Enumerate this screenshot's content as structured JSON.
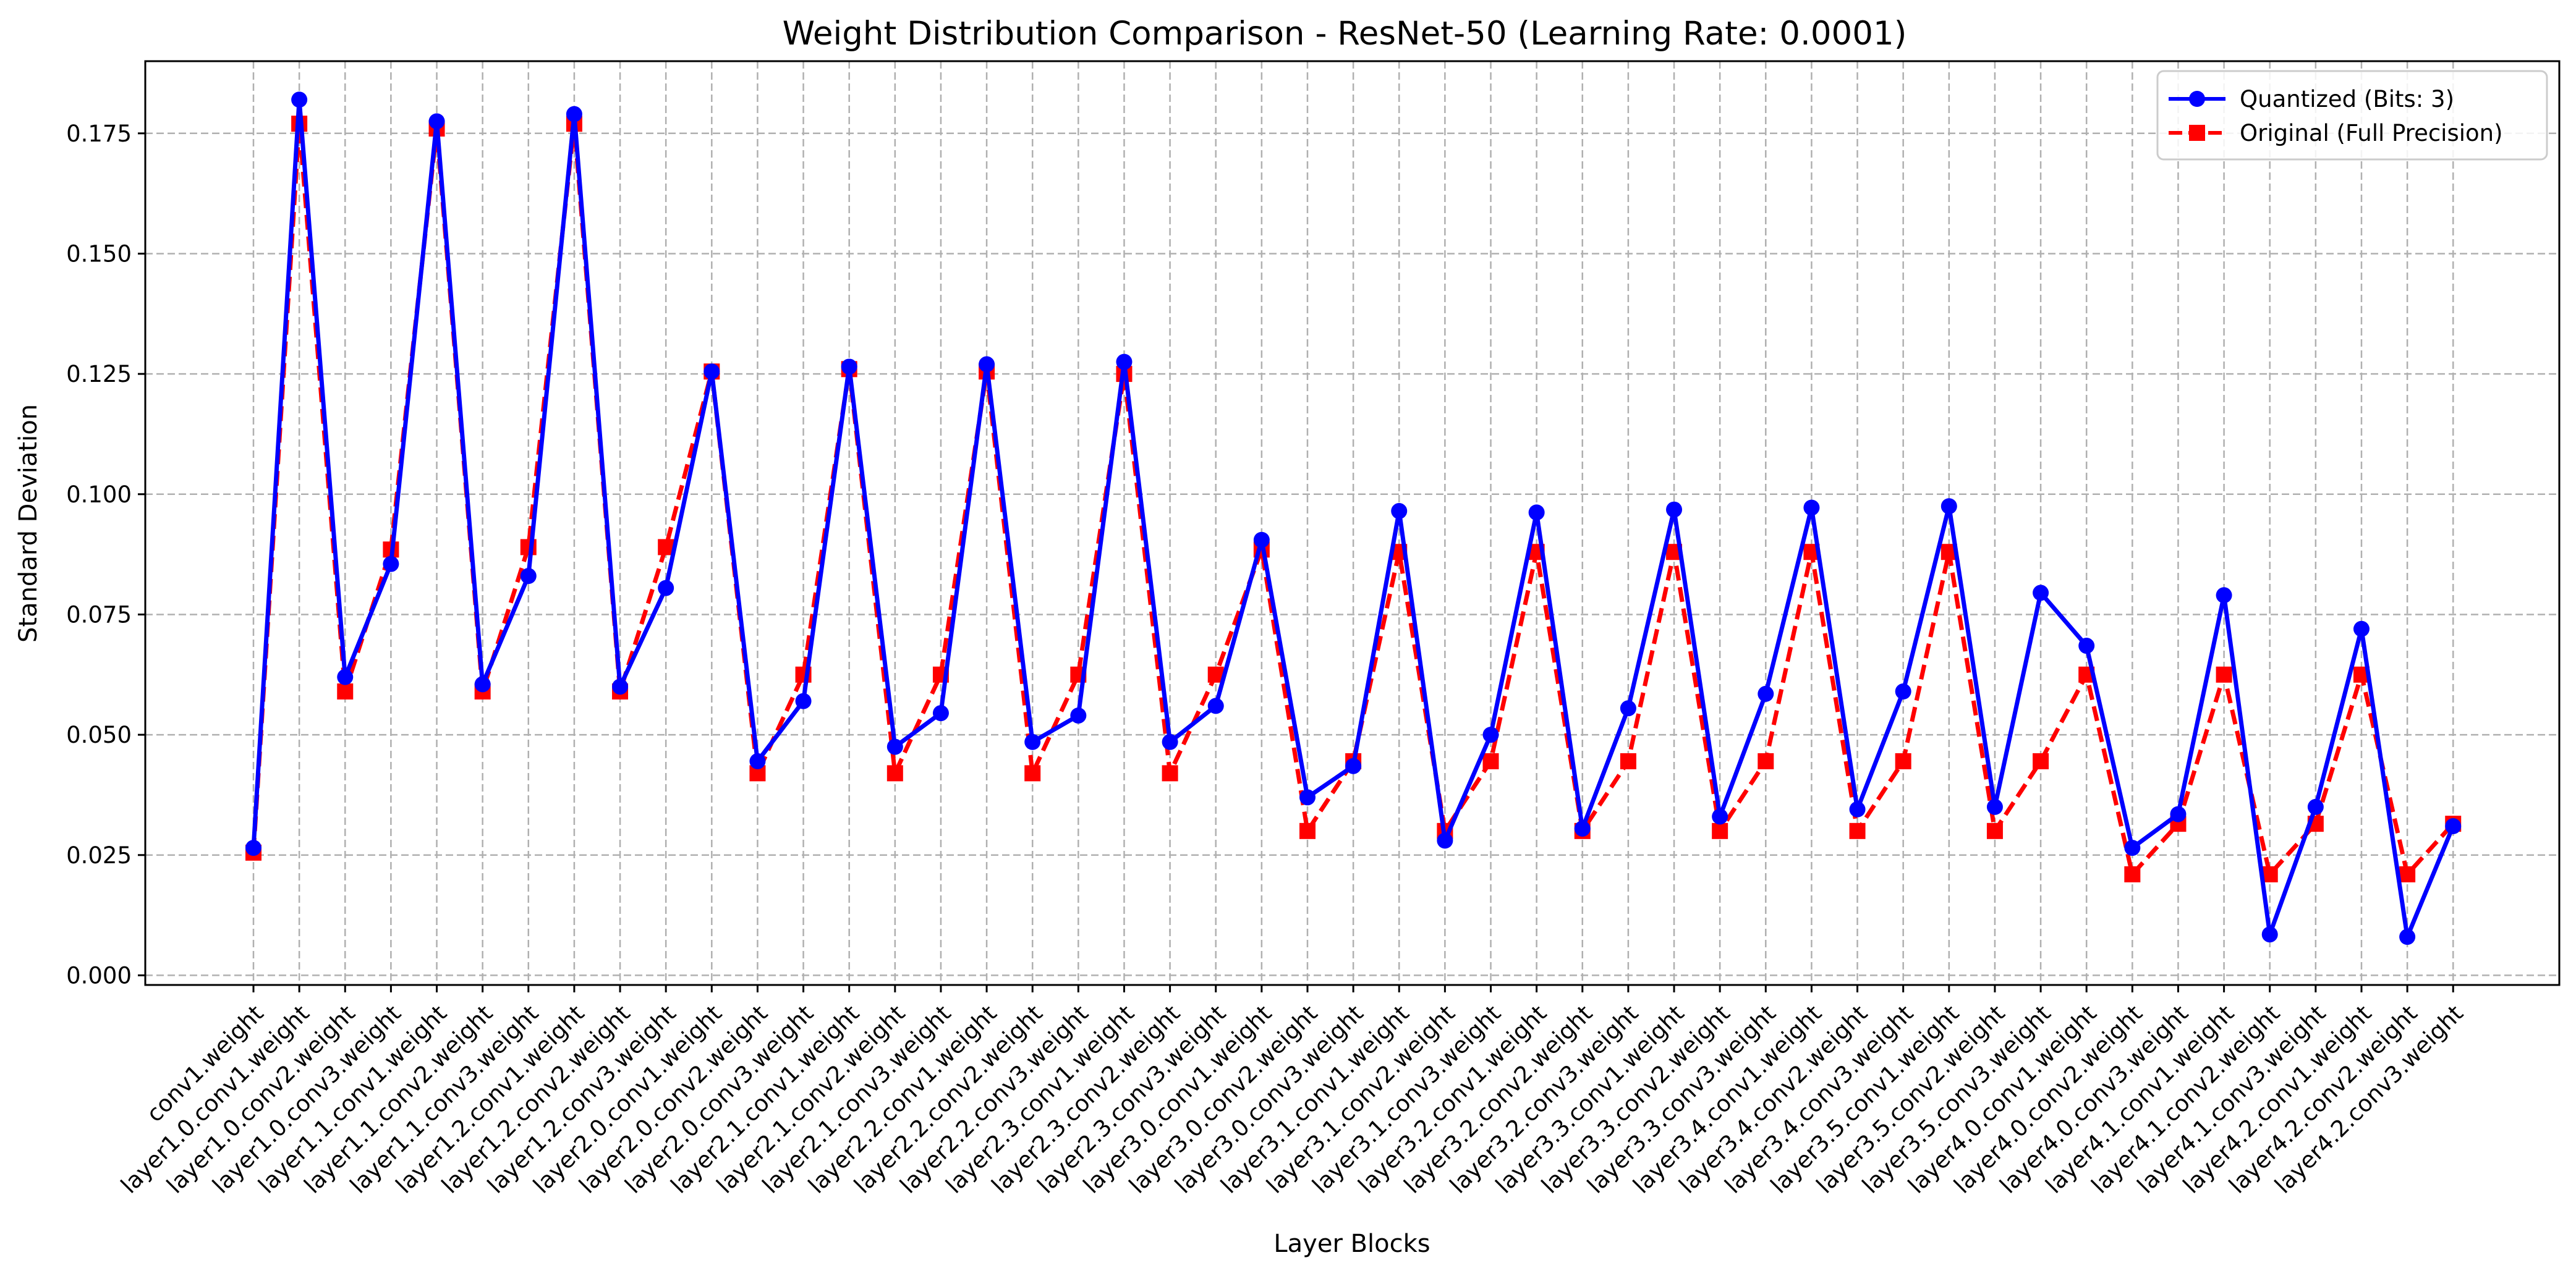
{
  "chart_data": {
    "type": "line",
    "title": "Weight Distribution Comparison - ResNet-50 (Learning Rate: 0.0001)",
    "xlabel": "Layer Blocks",
    "ylabel": "Standard Deviation",
    "ylim": [
      -0.002,
      0.19
    ],
    "yticks": [
      0.0,
      0.025,
      0.05,
      0.075,
      0.1,
      0.125,
      0.15,
      0.175
    ],
    "ytick_labels": [
      "0.000",
      "0.025",
      "0.050",
      "0.075",
      "0.100",
      "0.125",
      "0.150",
      "0.175"
    ],
    "grid": true,
    "legend_position": "upper right",
    "categories": [
      "conv1.weight",
      "layer1.0.conv1.weight",
      "layer1.0.conv2.weight",
      "layer1.0.conv3.weight",
      "layer1.1.conv1.weight",
      "layer1.1.conv2.weight",
      "layer1.1.conv3.weight",
      "layer1.2.conv1.weight",
      "layer1.2.conv2.weight",
      "layer1.2.conv3.weight",
      "layer2.0.conv1.weight",
      "layer2.0.conv2.weight",
      "layer2.0.conv3.weight",
      "layer2.1.conv1.weight",
      "layer2.1.conv2.weight",
      "layer2.1.conv3.weight",
      "layer2.2.conv1.weight",
      "layer2.2.conv2.weight",
      "layer2.2.conv3.weight",
      "layer2.3.conv1.weight",
      "layer2.3.conv2.weight",
      "layer2.3.conv3.weight",
      "layer3.0.conv1.weight",
      "layer3.0.conv2.weight",
      "layer3.0.conv3.weight",
      "layer3.1.conv1.weight",
      "layer3.1.conv2.weight",
      "layer3.1.conv3.weight",
      "layer3.2.conv1.weight",
      "layer3.2.conv2.weight",
      "layer3.2.conv3.weight",
      "layer3.3.conv1.weight",
      "layer3.3.conv2.weight",
      "layer3.3.conv3.weight",
      "layer3.4.conv1.weight",
      "layer3.4.conv2.weight",
      "layer3.4.conv3.weight",
      "layer3.5.conv1.weight",
      "layer3.5.conv2.weight",
      "layer3.5.conv3.weight",
      "layer4.0.conv1.weight",
      "layer4.0.conv2.weight",
      "layer4.0.conv3.weight",
      "layer4.1.conv1.weight",
      "layer4.1.conv2.weight",
      "layer4.1.conv3.weight",
      "layer4.2.conv1.weight",
      "layer4.2.conv2.weight",
      "layer4.2.conv3.weight"
    ],
    "series": [
      {
        "name": "Quantized (Bits: 3)",
        "color": "#0000ff",
        "line_style": "solid",
        "marker": "circle",
        "values": [
          0.0265,
          0.182,
          0.062,
          0.0855,
          0.1775,
          0.0605,
          0.083,
          0.179,
          0.06,
          0.0805,
          0.1255,
          0.0445,
          0.057,
          0.1265,
          0.0475,
          0.0545,
          0.127,
          0.0485,
          0.054,
          0.1275,
          0.0485,
          0.056,
          0.0905,
          0.037,
          0.0435,
          0.0965,
          0.028,
          0.05,
          0.0962,
          0.0305,
          0.0555,
          0.0968,
          0.033,
          0.0585,
          0.0972,
          0.0345,
          0.059,
          0.0975,
          0.035,
          0.0795,
          0.0685,
          0.0265,
          0.0335,
          0.079,
          0.0085,
          0.035,
          0.072,
          0.008,
          0.031
        ]
      },
      {
        "name": "Original (Full Precision)",
        "color": "#ff0000",
        "line_style": "dashed",
        "marker": "square",
        "values": [
          0.0255,
          0.177,
          0.059,
          0.0885,
          0.176,
          0.059,
          0.089,
          0.177,
          0.059,
          0.089,
          0.1255,
          0.042,
          0.0625,
          0.126,
          0.042,
          0.0625,
          0.1255,
          0.042,
          0.0625,
          0.125,
          0.042,
          0.0625,
          0.0885,
          0.03,
          0.0445,
          0.088,
          0.03,
          0.0445,
          0.088,
          0.03,
          0.0445,
          0.088,
          0.03,
          0.0445,
          0.088,
          0.03,
          0.0445,
          0.088,
          0.03,
          0.0445,
          0.0625,
          0.021,
          0.0315,
          0.0625,
          0.021,
          0.0315,
          0.0625,
          0.021,
          0.0315
        ]
      }
    ]
  }
}
